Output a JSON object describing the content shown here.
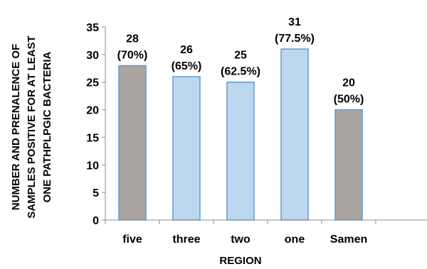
{
  "chart_data": {
    "type": "bar",
    "categories": [
      "five",
      "three",
      "two",
      "one",
      "Samen"
    ],
    "values": [
      28,
      26,
      25,
      31,
      20
    ],
    "data_labels": [
      [
        "28",
        "(70%)"
      ],
      [
        "26",
        "(65%)"
      ],
      [
        "25",
        "(62.5%)"
      ],
      [
        "31",
        "(77.5%)"
      ],
      [
        "20",
        "(50%)"
      ]
    ],
    "xlabel": "REGION",
    "ylabel_lines": [
      "NUMBER AND PRENALENCE OF",
      "SAMPLES POSITIVE FOR AT LEAST",
      "ONE PATHPLPGIC BACTERIA"
    ],
    "ylim": [
      0,
      35
    ],
    "yticks": [
      0,
      5,
      10,
      15,
      20,
      25,
      30,
      35
    ],
    "grid": false,
    "legend": "none",
    "bar_colors": [
      "#aba5a2",
      "#bdd7ee",
      "#bdd7ee",
      "#bdd7ee",
      "#aba5a2"
    ],
    "bar_edge_color": "#5b9bd5"
  }
}
